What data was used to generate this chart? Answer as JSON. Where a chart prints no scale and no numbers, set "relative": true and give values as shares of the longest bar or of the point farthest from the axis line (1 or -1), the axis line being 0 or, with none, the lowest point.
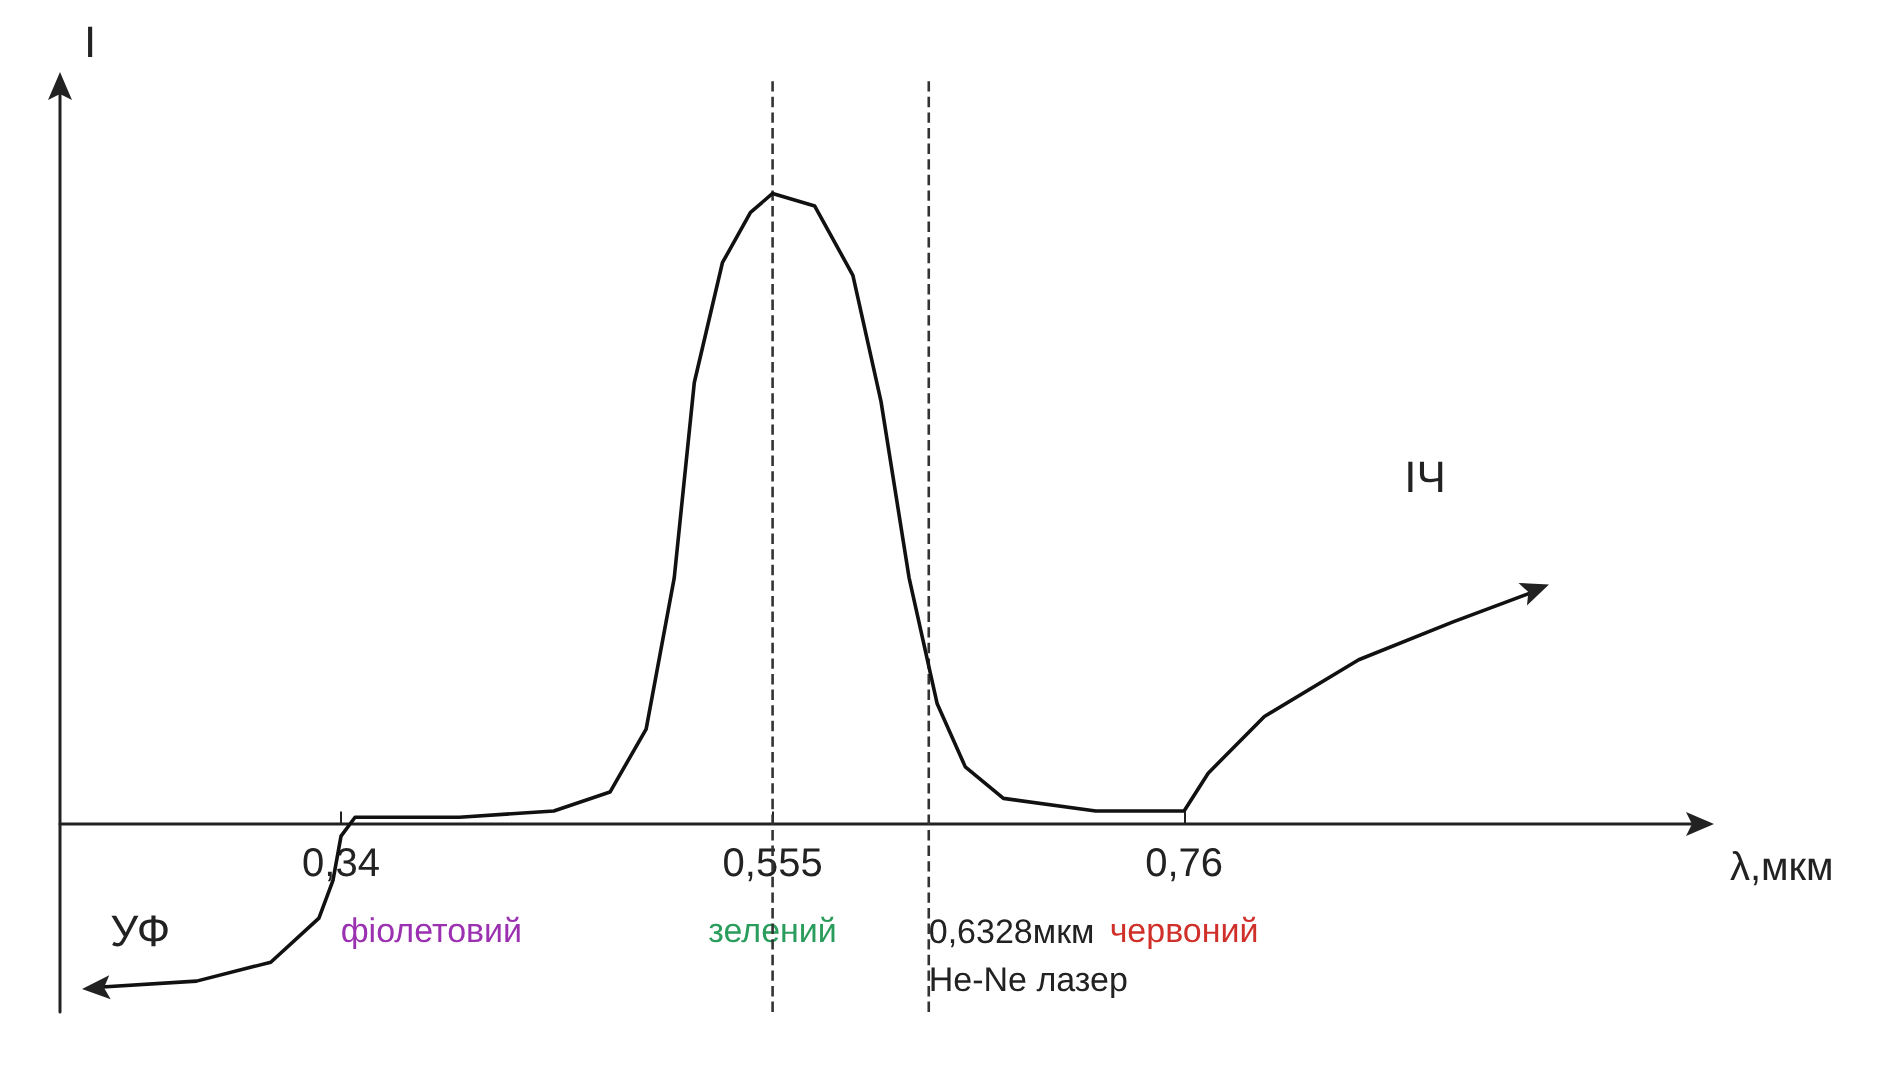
{
  "chart_data": {
    "type": "line",
    "relative": true,
    "xlabel": "λ,мкм",
    "ylabel": "I",
    "xlim": [
      0.2,
      1.02
    ],
    "xticks": [
      {
        "value": 0.34,
        "label": "0,34"
      },
      {
        "value": 0.555,
        "label": "0,555"
      },
      {
        "value": 0.76,
        "label": "0,76"
      }
    ],
    "x": [
      0.217,
      0.268,
      0.305,
      0.329,
      0.336,
      0.34,
      0.347,
      0.399,
      0.446,
      0.474,
      0.492,
      0.506,
      0.516,
      0.53,
      0.544,
      0.555,
      0.576,
      0.595,
      0.609,
      0.623,
      0.637,
      0.651,
      0.67,
      0.716,
      0.76,
      0.772,
      0.8,
      0.847,
      0.894,
      0.936
    ],
    "series": [
      {
        "color": "#111111",
        "values": [
          -0.26,
          -0.25,
          -0.22,
          -0.15,
          -0.09,
          -0.02,
          0.01,
          0.01,
          0.02,
          0.05,
          0.15,
          0.39,
          0.7,
          0.89,
          0.97,
          1,
          0.98,
          0.87,
          0.67,
          0.39,
          0.19,
          0.09,
          0.04,
          0.02,
          0.02,
          0.08,
          0.17,
          0.26,
          0.32,
          0.37
        ]
      }
    ],
    "ref_lines": [
      {
        "axis": "x",
        "value": 0.555,
        "label": null,
        "color": "#333333",
        "line_style": "dashed"
      },
      {
        "axis": "x",
        "value": 0.6328,
        "label": "0,6328мкм\nHe-Ne лазер",
        "color": "#333333",
        "line_style": "dashed"
      }
    ],
    "annotations": [
      "УФ",
      "фіолетовий",
      "зелений",
      "червоний",
      "ІЧ"
    ],
    "marker": "none",
    "line_style": "solid"
  }
}
